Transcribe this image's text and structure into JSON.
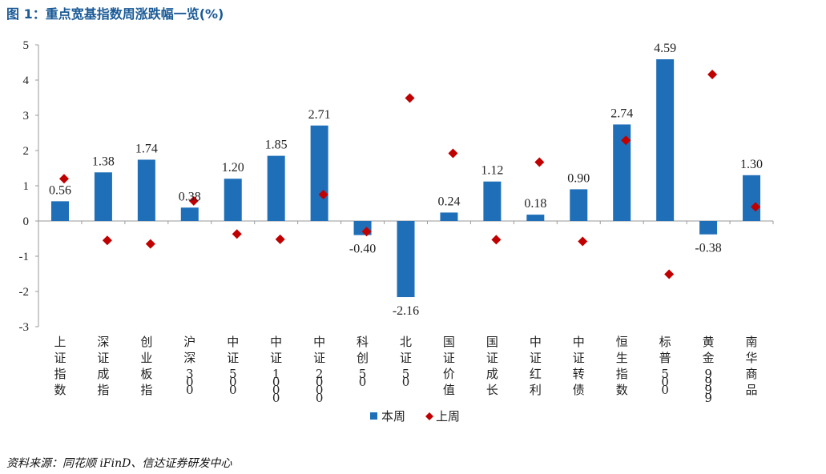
{
  "title": "图 1：重点宽基指数周涨跌幅一览(%)",
  "source": "资料来源：同花顺 iFinD、信达证券研发中心",
  "chart_data": {
    "type": "bar",
    "categories": [
      "上证指数",
      "深证成指",
      "创业板指",
      "沪深300",
      "中证500",
      "中证1000",
      "中证2000",
      "科创50",
      "北证50",
      "国证价值",
      "国证成长",
      "中证红利",
      "中证转债",
      "恒生指数",
      "标普500",
      "黄金9999",
      "南华商品"
    ],
    "series": [
      {
        "name": "本周",
        "type": "bar",
        "color": "#1f6fb8",
        "values": [
          0.56,
          1.38,
          1.74,
          0.38,
          1.2,
          1.85,
          2.71,
          -0.4,
          -2.16,
          0.24,
          1.12,
          0.18,
          0.9,
          2.74,
          4.59,
          -0.38,
          1.3
        ],
        "labels": [
          "0.56",
          "1.38",
          "1.74",
          "0.38",
          "1.20",
          "1.85",
          "2.71",
          "-0.40",
          "-2.16",
          "0.24",
          "1.12",
          "0.18",
          "0.90",
          "2.74",
          "4.59",
          "-0.38",
          "1.30"
        ]
      },
      {
        "name": "上周",
        "type": "scatter",
        "marker": "diamond",
        "color": "#c00000",
        "values": [
          1.2,
          -0.55,
          -0.65,
          0.57,
          -0.37,
          -0.52,
          0.75,
          -0.3,
          3.49,
          1.92,
          -0.53,
          1.67,
          -0.58,
          2.29,
          -1.51,
          4.16,
          0.4
        ]
      }
    ],
    "ylim": [
      -3,
      5
    ],
    "yticks": [
      "5",
      "4",
      "3",
      "2",
      "1",
      "0",
      "-1",
      "-2",
      "-3"
    ],
    "legend_position": "bottom-center",
    "grid": false
  }
}
